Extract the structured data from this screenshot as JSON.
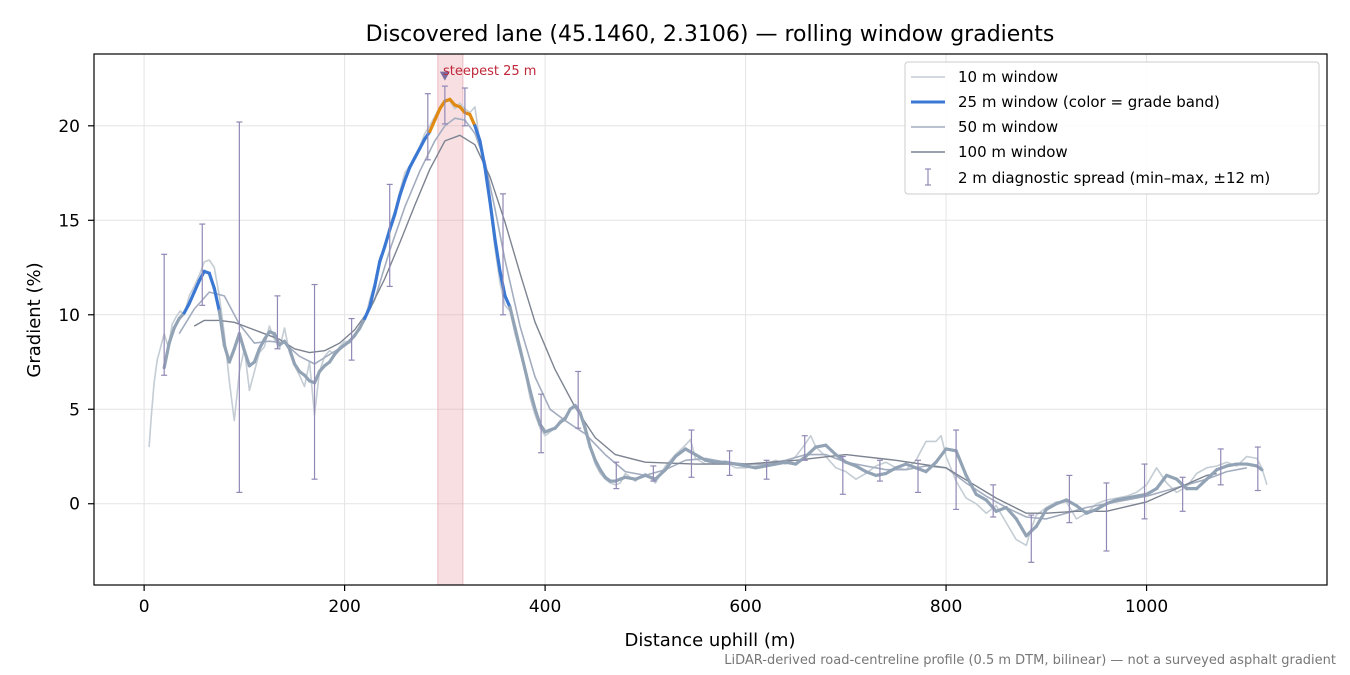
{
  "colors": {
    "w10": "#c4ccd4",
    "w25_base": "#93a3b6",
    "w25_blue": "#3a78d4",
    "w25_orange": "#e08a12",
    "w50": "#a3adbf",
    "w100": "#7c8390",
    "errbar": "#9188b5",
    "steep_band": "#e9a4ad",
    "steep_text": "#c0283a",
    "marker": "#7a6fa0",
    "grid": "#e4e4e4",
    "axis": "#000000",
    "footnote": "#777777"
  },
  "chart_data": {
    "type": "line",
    "title": "Discovered lane (45.1460, 2.3106) — rolling window gradients",
    "xlabel": "Distance uphill (m)",
    "ylabel": "Gradient (%)",
    "xlim": [
      -50,
      1180
    ],
    "ylim": [
      -4.3,
      23.8
    ],
    "xticks": [
      0,
      200,
      400,
      600,
      800,
      1000
    ],
    "yticks": [
      0,
      5,
      10,
      15,
      20
    ],
    "grid": true,
    "legend_position": "top-right",
    "legend": [
      {
        "key": "w10",
        "label": "10 m window"
      },
      {
        "key": "w25",
        "label": "25 m window (color = grade band)"
      },
      {
        "key": "w50",
        "label": "50 m window"
      },
      {
        "key": "w100",
        "label": "100 m window"
      },
      {
        "key": "err",
        "label": "2 m diagnostic spread (min–max, ±12 m)"
      }
    ],
    "annotation": {
      "text": "steepest 25 m",
      "x": 300,
      "y": 22.6
    },
    "steepest_band": [
      293,
      318
    ],
    "footnote": "LiDAR-derived road-centreline profile (0.5 m DTM, bilinear) — not a surveyed asphalt gradient",
    "series": [
      {
        "key": "w25",
        "name": "25 m window (color = grade band)",
        "x": [
          20,
          25,
          30,
          35,
          40,
          45,
          50,
          55,
          60,
          65,
          70,
          75,
          80,
          85,
          90,
          95,
          100,
          105,
          110,
          115,
          120,
          125,
          130,
          135,
          140,
          145,
          150,
          155,
          160,
          165,
          170,
          175,
          180,
          185,
          190,
          195,
          200,
          205,
          210,
          215,
          220,
          225,
          230,
          235,
          240,
          245,
          250,
          255,
          260,
          265,
          270,
          275,
          280,
          285,
          290,
          295,
          300,
          305,
          310,
          315,
          320,
          325,
          330,
          335,
          340,
          345,
          350,
          355,
          360,
          365,
          370,
          375,
          380,
          385,
          390,
          395,
          400,
          405,
          410,
          415,
          420,
          425,
          430,
          435,
          440,
          445,
          450,
          455,
          460,
          465,
          470,
          475,
          480,
          490,
          500,
          510,
          520,
          530,
          540,
          550,
          560,
          570,
          580,
          590,
          600,
          610,
          620,
          630,
          640,
          650,
          660,
          670,
          680,
          690,
          700,
          710,
          720,
          730,
          740,
          750,
          760,
          770,
          780,
          790,
          800,
          810,
          820,
          830,
          840,
          850,
          860,
          870,
          880,
          890,
          900,
          910,
          920,
          930,
          940,
          950,
          960,
          970,
          980,
          990,
          1000,
          1010,
          1020,
          1030,
          1040,
          1050,
          1060,
          1070,
          1080,
          1090,
          1100,
          1110,
          1115
        ],
        "values": [
          7.2,
          8.5,
          9.3,
          9.8,
          10.1,
          10.6,
          11.2,
          11.8,
          12.3,
          12.2,
          11.4,
          10.2,
          8.4,
          7.5,
          8.2,
          9.0,
          8.1,
          7.3,
          7.5,
          8.2,
          8.7,
          9.1,
          9.0,
          8.4,
          8.6,
          8.2,
          7.4,
          7.0,
          6.8,
          6.5,
          6.4,
          7.0,
          7.3,
          7.5,
          7.9,
          8.2,
          8.4,
          8.6,
          8.9,
          9.3,
          9.8,
          10.4,
          11.5,
          12.8,
          13.6,
          14.5,
          15.3,
          16.3,
          17.1,
          17.8,
          18.3,
          18.8,
          19.3,
          19.7,
          20.3,
          20.9,
          21.3,
          21.4,
          21.1,
          21.0,
          20.7,
          20.6,
          20.0,
          19.2,
          17.8,
          16.0,
          14.0,
          12.3,
          11.0,
          10.4,
          9.3,
          8.2,
          7.1,
          6.0,
          5.0,
          4.2,
          3.8,
          3.9,
          4.0,
          4.3,
          4.5,
          5.0,
          5.2,
          4.8,
          4.0,
          3.0,
          2.3,
          1.8,
          1.4,
          1.2,
          1.2,
          1.3,
          1.4,
          1.3,
          1.5,
          1.3,
          1.8,
          2.5,
          2.9,
          2.6,
          2.3,
          2.2,
          2.2,
          2.1,
          2.0,
          1.9,
          2.0,
          2.1,
          2.2,
          2.1,
          2.5,
          3.0,
          3.1,
          2.6,
          2.2,
          2.0,
          1.7,
          1.5,
          1.6,
          1.9,
          2.1,
          1.9,
          1.7,
          2.2,
          2.9,
          2.8,
          1.5,
          0.5,
          0.2,
          -0.4,
          -0.2,
          -0.8,
          -1.7,
          -1.2,
          -0.3,
          0.0,
          0.2,
          -0.1,
          -0.5,
          -0.3,
          0.0,
          0.2,
          0.3,
          0.4,
          0.5,
          0.8,
          1.5,
          1.3,
          0.8,
          0.8,
          1.3,
          1.8,
          2.0,
          2.1,
          2.1,
          2.0,
          1.8
        ]
      },
      {
        "key": "w10",
        "name": "10 m window",
        "x": [
          5,
          7,
          10,
          13,
          16,
          20,
          24,
          28,
          32,
          36,
          40,
          45,
          50,
          55,
          60,
          65,
          70,
          75,
          80,
          85,
          90,
          95,
          100,
          105,
          110,
          115,
          120,
          125,
          130,
          135,
          140,
          145,
          150,
          155,
          160,
          165,
          170,
          175,
          180,
          185,
          190,
          195,
          200,
          205,
          210,
          215,
          220,
          225,
          230,
          235,
          240,
          245,
          250,
          255,
          260,
          265,
          270,
          275,
          280,
          285,
          290,
          295,
          300,
          305,
          310,
          315,
          320,
          325,
          330,
          335,
          340,
          345,
          350,
          355,
          360,
          365,
          370,
          375,
          380,
          385,
          390,
          395,
          400,
          405,
          410,
          415,
          420,
          425,
          430,
          435,
          440,
          445,
          450,
          455,
          460,
          465,
          470,
          475,
          480,
          490,
          500,
          510,
          520,
          530,
          540,
          545,
          550,
          560,
          570,
          580,
          590,
          600,
          610,
          620,
          630,
          640,
          650,
          660,
          665,
          670,
          680,
          690,
          700,
          710,
          720,
          730,
          740,
          750,
          760,
          770,
          780,
          790,
          795,
          800,
          810,
          820,
          830,
          840,
          850,
          860,
          870,
          880,
          885,
          890,
          900,
          910,
          920,
          930,
          940,
          950,
          960,
          970,
          980,
          990,
          1000,
          1010,
          1020,
          1030,
          1040,
          1050,
          1060,
          1070,
          1080,
          1090,
          1100,
          1110,
          1115,
          1120
        ],
        "values": [
          3.0,
          4.5,
          6.4,
          7.6,
          8.2,
          9.0,
          8.3,
          9.5,
          9.9,
          10.2,
          10.0,
          11.0,
          11.5,
          12.1,
          12.8,
          12.9,
          12.5,
          11.0,
          9.0,
          6.5,
          4.4,
          7.0,
          8.2,
          6.0,
          7.0,
          8.0,
          8.3,
          9.4,
          8.7,
          8.2,
          9.3,
          8.0,
          7.3,
          6.8,
          6.2,
          7.5,
          4.7,
          7.0,
          7.8,
          8.1,
          7.9,
          8.3,
          8.6,
          8.5,
          9.0,
          9.2,
          9.7,
          10.8,
          11.7,
          13.0,
          13.5,
          14.7,
          15.5,
          16.5,
          17.5,
          17.9,
          18.4,
          18.9,
          19.6,
          20.0,
          20.5,
          21.0,
          21.4,
          21.3,
          20.9,
          21.2,
          20.9,
          20.7,
          21.0,
          19.1,
          17.6,
          15.8,
          13.5,
          11.7,
          10.5,
          10.2,
          9.0,
          8.0,
          7.0,
          5.6,
          4.7,
          4.0,
          3.6,
          3.8,
          4.0,
          4.4,
          4.6,
          5.0,
          5.1,
          4.7,
          3.8,
          3.0,
          2.1,
          1.6,
          1.3,
          1.1,
          1.0,
          1.1,
          1.6,
          1.2,
          1.6,
          1.1,
          2.0,
          2.6,
          3.1,
          3.4,
          2.4,
          2.1,
          2.2,
          2.2,
          1.9,
          1.9,
          2.0,
          2.1,
          2.3,
          2.1,
          2.5,
          3.2,
          3.6,
          3.0,
          2.5,
          1.9,
          1.7,
          1.3,
          1.6,
          2.0,
          2.2,
          1.9,
          1.8,
          2.3,
          3.3,
          3.3,
          3.6,
          2.5,
          1.2,
          0.3,
          0.0,
          -0.5,
          -0.1,
          -1.0,
          -1.9,
          -2.2,
          -1.3,
          -0.6,
          -0.2,
          0.1,
          0.1,
          -0.8,
          -0.5,
          0.0,
          0.2,
          0.3,
          0.4,
          0.6,
          1.0,
          1.9,
          1.1,
          0.6,
          0.9,
          1.6,
          1.9,
          2.0,
          2.2,
          2.0,
          2.5,
          2.4,
          1.9,
          1.0
        ]
      },
      {
        "key": "w50",
        "name": "50 m window",
        "x": [
          35,
          50,
          65,
          80,
          95,
          110,
          125,
          140,
          155,
          170,
          185,
          200,
          215,
          230,
          245,
          260,
          275,
          290,
          300,
          310,
          320,
          330,
          340,
          350,
          360,
          375,
          390,
          405,
          420,
          440,
          460,
          480,
          500,
          520,
          540,
          560,
          580,
          600,
          620,
          640,
          660,
          680,
          700,
          720,
          740,
          760,
          780,
          800,
          820,
          840,
          860,
          880,
          900,
          920,
          940,
          960,
          980,
          1000,
          1020,
          1040,
          1060,
          1080,
          1100
        ],
        "values": [
          9.0,
          10.3,
          11.2,
          11.0,
          9.5,
          8.5,
          8.6,
          8.5,
          7.8,
          7.4,
          7.9,
          8.4,
          9.2,
          10.8,
          13.4,
          15.7,
          17.6,
          19.2,
          20.0,
          20.4,
          20.3,
          19.6,
          18.1,
          15.6,
          12.9,
          9.4,
          6.7,
          5.0,
          4.4,
          3.7,
          2.6,
          1.7,
          1.5,
          1.8,
          2.3,
          2.4,
          2.2,
          2.1,
          2.1,
          2.3,
          2.6,
          2.6,
          2.2,
          2.0,
          1.8,
          1.8,
          2.0,
          1.9,
          1.1,
          0.4,
          -0.2,
          -0.7,
          -0.8,
          -0.5,
          -0.2,
          0.0,
          0.2,
          0.4,
          0.7,
          1.0,
          1.3,
          1.7,
          1.9
        ]
      },
      {
        "key": "w100",
        "name": "100 m window",
        "x": [
          50,
          60,
          75,
          90,
          105,
          120,
          135,
          150,
          165,
          180,
          195,
          210,
          225,
          240,
          255,
          270,
          285,
          300,
          315,
          330,
          345,
          360,
          375,
          390,
          410,
          430,
          450,
          470,
          500,
          550,
          600,
          650,
          700,
          750,
          800,
          850,
          880,
          900,
          930,
          960,
          1000,
          1030,
          1060,
          1070
        ],
        "values": [
          9.4,
          9.7,
          9.7,
          9.6,
          9.3,
          9.0,
          8.7,
          8.2,
          8.0,
          8.1,
          8.5,
          9.2,
          10.3,
          11.9,
          13.8,
          15.8,
          17.7,
          19.2,
          19.5,
          19.0,
          17.3,
          14.9,
          12.2,
          9.6,
          7.1,
          5.1,
          3.5,
          2.6,
          2.2,
          2.1,
          2.1,
          2.3,
          2.6,
          2.3,
          1.9,
          0.3,
          -0.5,
          -0.5,
          -0.4,
          -0.4,
          0.1,
          0.8,
          1.5,
          1.6
        ]
      }
    ],
    "spread_bars": [
      {
        "x": 20,
        "lo": 6.8,
        "hi": 13.2
      },
      {
        "x": 58,
        "lo": 10.5,
        "hi": 14.8
      },
      {
        "x": 95,
        "lo": 0.6,
        "hi": 20.2
      },
      {
        "x": 133,
        "lo": 8.2,
        "hi": 11.0
      },
      {
        "x": 170,
        "lo": 1.3,
        "hi": 11.6
      },
      {
        "x": 207,
        "lo": 7.6,
        "hi": 9.8
      },
      {
        "x": 245,
        "lo": 11.5,
        "hi": 16.9
      },
      {
        "x": 283,
        "lo": 18.2,
        "hi": 21.7
      },
      {
        "x": 300,
        "lo": 20.1,
        "hi": 22.1
      },
      {
        "x": 320,
        "lo": 20.0,
        "hi": 22.0
      },
      {
        "x": 358,
        "lo": 10.0,
        "hi": 16.4
      },
      {
        "x": 396,
        "lo": 2.7,
        "hi": 5.8
      },
      {
        "x": 433,
        "lo": 4.0,
        "hi": 7.0
      },
      {
        "x": 471,
        "lo": 0.8,
        "hi": 2.2
      },
      {
        "x": 508,
        "lo": 1.2,
        "hi": 2.0
      },
      {
        "x": 546,
        "lo": 1.4,
        "hi": 3.9
      },
      {
        "x": 584,
        "lo": 1.5,
        "hi": 2.8
      },
      {
        "x": 621,
        "lo": 1.3,
        "hi": 2.3
      },
      {
        "x": 659,
        "lo": 2.3,
        "hi": 3.6
      },
      {
        "x": 697,
        "lo": 0.5,
        "hi": 2.5
      },
      {
        "x": 734,
        "lo": 1.2,
        "hi": 2.3
      },
      {
        "x": 772,
        "lo": 0.6,
        "hi": 2.3
      },
      {
        "x": 810,
        "lo": -0.3,
        "hi": 3.9
      },
      {
        "x": 847,
        "lo": -0.7,
        "hi": 1.0
      },
      {
        "x": 885,
        "lo": -3.1,
        "hi": -0.6
      },
      {
        "x": 923,
        "lo": -1.0,
        "hi": 1.5
      },
      {
        "x": 960,
        "lo": -2.5,
        "hi": 1.1
      },
      {
        "x": 998,
        "lo": -0.8,
        "hi": 2.1
      },
      {
        "x": 1036,
        "lo": -0.4,
        "hi": 1.4
      },
      {
        "x": 1074,
        "lo": 1.0,
        "hi": 2.9
      },
      {
        "x": 1111,
        "lo": 0.7,
        "hi": 3.0
      }
    ]
  }
}
